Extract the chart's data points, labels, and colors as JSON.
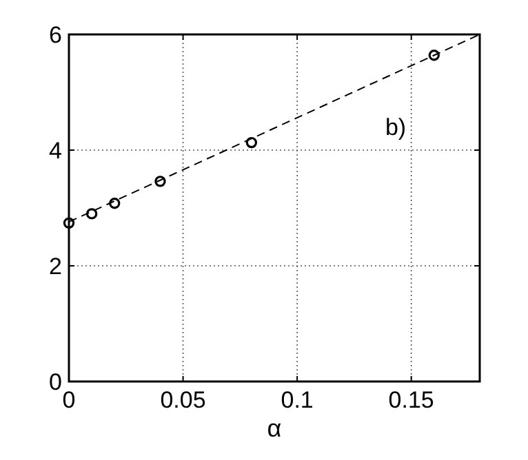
{
  "chart_data": {
    "type": "scatter",
    "xlabel": "α",
    "annotations": [
      "b)"
    ],
    "xlim": [
      0,
      0.18
    ],
    "ylim": [
      0,
      6
    ],
    "xticks": [
      0,
      0.05,
      0.1,
      0.15
    ],
    "yticks": [
      0,
      2,
      4,
      6
    ],
    "grid": true,
    "marker": "circle",
    "series": [
      {
        "color": "#000000",
        "x": [
          0,
          0.01,
          0.02,
          0.04,
          0.08,
          0.16
        ],
        "values": [
          2.74,
          2.9,
          3.08,
          3.46,
          4.13,
          5.64
        ]
      },
      {
        "type": "line",
        "color": "#000000",
        "x": [
          0,
          0.18
        ],
        "values": [
          2.76,
          6.0
        ],
        "marker": "none",
        "line_style": "dashed"
      }
    ]
  }
}
